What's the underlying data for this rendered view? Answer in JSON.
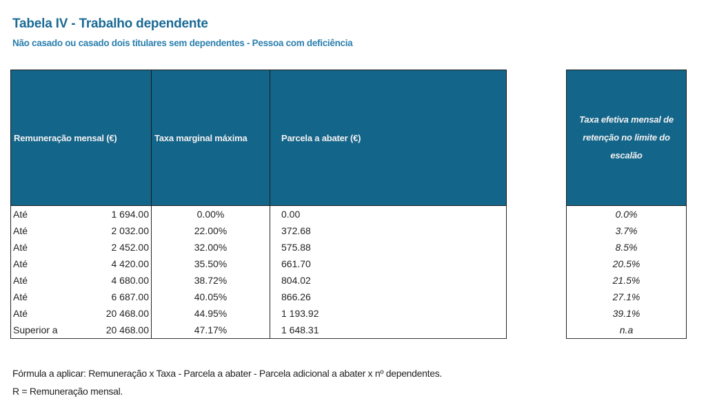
{
  "title": "Tabela IV - Trabalho dependente",
  "subtitle": "Não casado ou casado dois titulares sem dependentes - Pessoa com deficiência",
  "main_table": {
    "headers": [
      "Remuneração mensal (€)",
      "Taxa marginal máxima",
      "Parcela a abater (€)"
    ],
    "rows": [
      {
        "label": "Até",
        "remuneracao": "1 694.00",
        "taxa": "0.00%",
        "parcela": "0.00"
      },
      {
        "label": "Até",
        "remuneracao": "2 032.00",
        "taxa": "22.00%",
        "parcela": "372.68"
      },
      {
        "label": "Até",
        "remuneracao": "2 452.00",
        "taxa": "32.00%",
        "parcela": "575.88"
      },
      {
        "label": "Até",
        "remuneracao": "4 420.00",
        "taxa": "35.50%",
        "parcela": "661.70"
      },
      {
        "label": "Até",
        "remuneracao": "4 680.00",
        "taxa": "38.72%",
        "parcela": "804.02"
      },
      {
        "label": "Até",
        "remuneracao": "6 687.00",
        "taxa": "40.05%",
        "parcela": "866.26"
      },
      {
        "label": "Até",
        "remuneracao": "20 468.00",
        "taxa": "44.95%",
        "parcela": "1 193.92"
      },
      {
        "label": "Superior a",
        "remuneracao": "20 468.00",
        "taxa": "47.17%",
        "parcela": "1 648.31"
      }
    ]
  },
  "side_table": {
    "header": "Taxa efetiva mensal de retenção no limite do escalão",
    "values": [
      "0.0%",
      "3.7%",
      "8.5%",
      "20.5%",
      "21.5%",
      "27.1%",
      "39.1%",
      "n.a"
    ]
  },
  "notes": {
    "formula": "Fórmula a aplicar: Remuneração x Taxa - Parcela a abater - Parcela adicional a abater x nº dependentes.",
    "legend": "R = Remuneração mensal."
  },
  "colors": {
    "header_bg": "#14658a",
    "title": "#1a6a95",
    "subtitle": "#2a7fae"
  }
}
